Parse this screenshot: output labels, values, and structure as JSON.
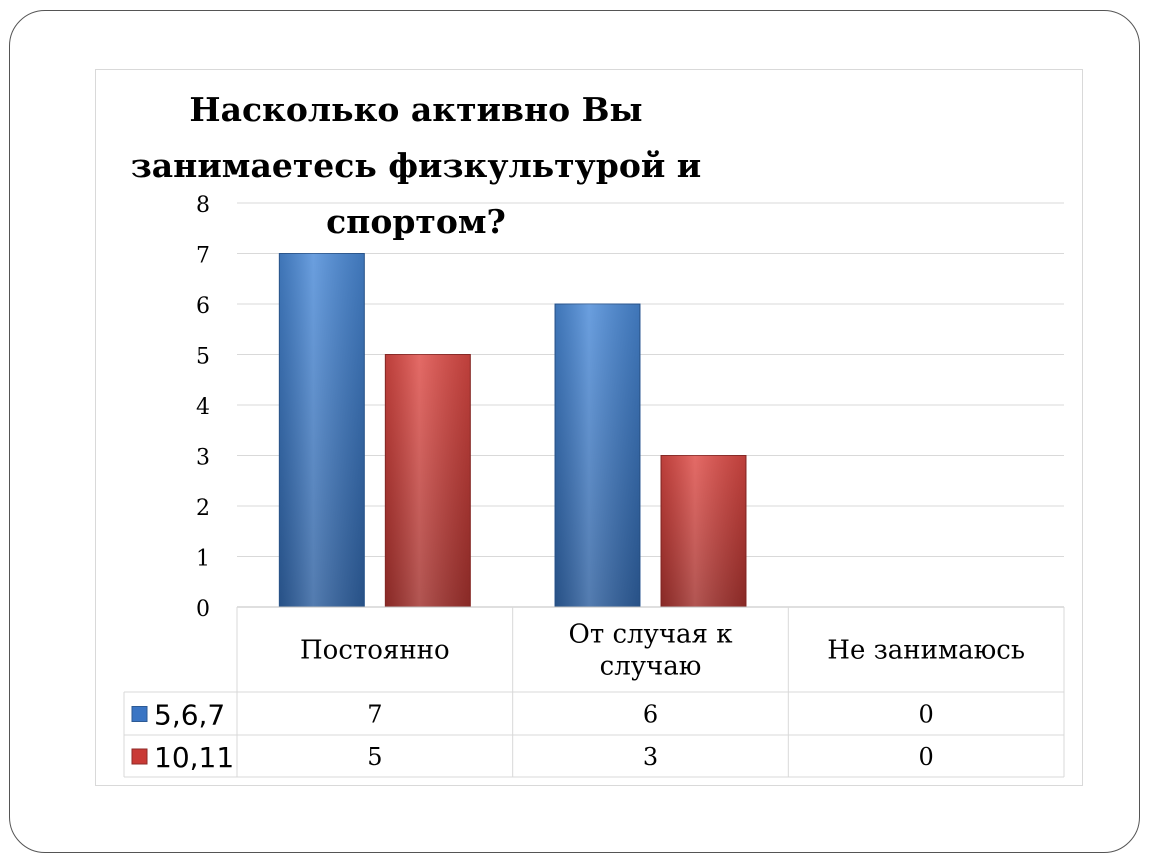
{
  "chart_data": {
    "type": "bar",
    "title": "Насколько активно Вы занимаетесь физкультурой и спортом?",
    "categories": [
      "Постоянно",
      "От случая к случаю",
      "Не занимаюсь"
    ],
    "category_lines": [
      [
        "Постоянно"
      ],
      [
        "От случая к",
        "случаю"
      ],
      [
        "Не занимаюсь"
      ]
    ],
    "series": [
      {
        "name": "5,6,7",
        "values": [
          7,
          6,
          0
        ],
        "color": "#3a75c4"
      },
      {
        "name": "10,11",
        "values": [
          5,
          3,
          0
        ],
        "color": "#c93a36"
      }
    ],
    "ylim": [
      0,
      8
    ],
    "yticks": [
      "0",
      "1",
      "2",
      "3",
      "4",
      "5",
      "6",
      "7",
      "8"
    ],
    "grid": true,
    "data_table": true,
    "legend": "data-table-left"
  }
}
